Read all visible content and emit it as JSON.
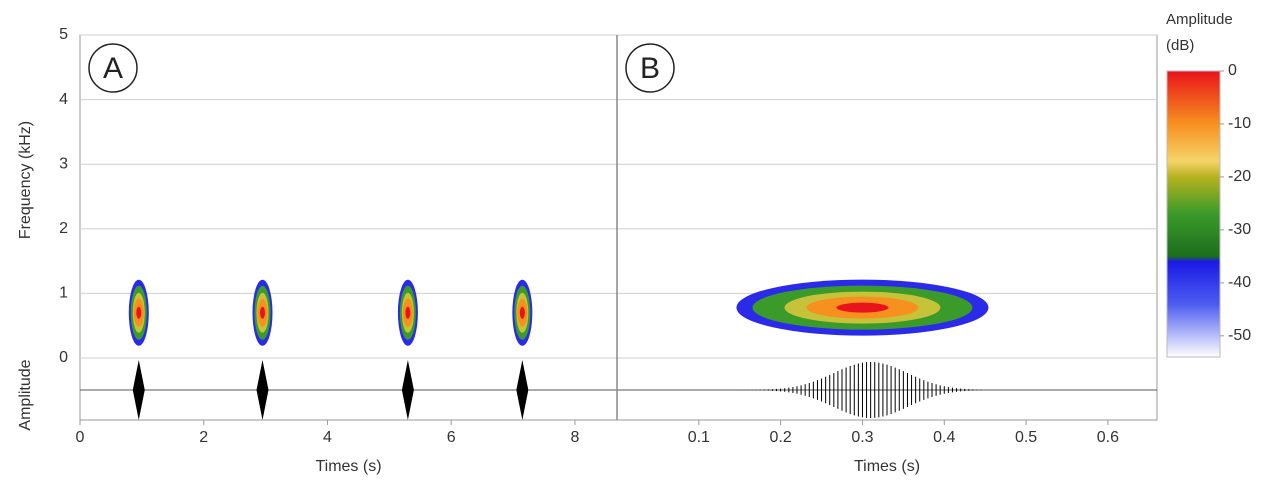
{
  "chart_data": [
    {
      "type": "spectrogram",
      "panel_label": "A",
      "x": [
        0.95,
        2.95,
        5.3,
        7.15
      ],
      "values": [
        0.7,
        0.7,
        0.7,
        0.7
      ],
      "xlim": [
        0,
        8.68
      ],
      "xticks": [
        0,
        2,
        4,
        6,
        8
      ],
      "xlabel": "Times (s)",
      "ylim": [
        0,
        5
      ],
      "yticks": [
        0,
        1,
        2,
        3,
        4,
        5
      ],
      "ylabel": "Frequency (kHz)",
      "amplitude_label": "Amplitude",
      "grid": true
    },
    {
      "type": "spectrogram",
      "panel_label": "B",
      "x": [
        0.3
      ],
      "values": [
        0.78
      ],
      "xlim": [
        0,
        0.66
      ],
      "xticks": [
        0.1,
        0.2,
        0.3,
        0.4,
        0.5,
        0.6
      ],
      "xlabel": "Times (s)",
      "ylim": [
        0,
        5
      ],
      "grid": true
    },
    {
      "type": "colorbar",
      "title": [
        "Amplitude",
        "(dB)"
      ],
      "lim": [
        -54,
        0
      ],
      "ticks": [
        0,
        -10,
        -20,
        -30,
        -40,
        -50
      ],
      "colormap": [
        {
          "value": 0,
          "color": "#e8141c"
        },
        {
          "value": -10,
          "color": "#f7901e"
        },
        {
          "value": -17,
          "color": "#f6d46a"
        },
        {
          "value": -20,
          "color": "#b8b21e"
        },
        {
          "value": -27,
          "color": "#3a9a2a"
        },
        {
          "value": -35,
          "color": "#1c6e1c"
        },
        {
          "value": -36,
          "color": "#1a1ae6"
        },
        {
          "value": -44,
          "color": "#4d5cf0"
        },
        {
          "value": -54,
          "color": "#ffffff"
        }
      ]
    }
  ]
}
